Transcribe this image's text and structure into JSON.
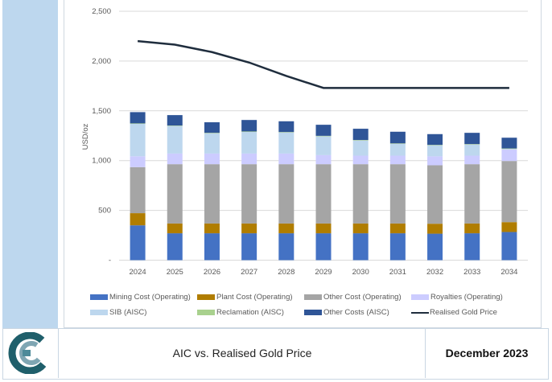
{
  "footer": {
    "title": "AIC vs. Realised Gold Price",
    "date": "December 2023"
  },
  "chart_data": {
    "type": "bar",
    "stacked": true,
    "title": "",
    "xlabel": "",
    "ylabel": "USD/oz",
    "ylim": [
      0,
      2500
    ],
    "yticks": [
      "-",
      "500",
      "1,000",
      "1,500",
      "2,000",
      "2,500"
    ],
    "grid": true,
    "legend_position": "bottom",
    "categories": [
      "2024",
      "2025",
      "2026",
      "2027",
      "2028",
      "2029",
      "2030",
      "2031",
      "2032",
      "2033",
      "2034"
    ],
    "series": [
      {
        "name": "Mining Cost (Operating)",
        "color": "#4472c4",
        "values": [
          350,
          270,
          270,
          270,
          270,
          270,
          270,
          270,
          266,
          270,
          283
        ]
      },
      {
        "name": "Plant Cost (Operating)",
        "color": "#b07d00",
        "values": [
          122,
          98,
          98,
          98,
          98,
          98,
          98,
          98,
          100,
          98,
          99
        ]
      },
      {
        "name": "Other Cost (Operating)",
        "color": "#a5a5a5",
        "values": [
          462,
          596,
          596,
          596,
          596,
          596,
          596,
          596,
          587,
          596,
          614
        ]
      },
      {
        "name": "Royalties (Operating)",
        "color": "#ccccff",
        "values": [
          110,
          107,
          107,
          107,
          107,
          91,
          86,
          86,
          90,
          86,
          116
        ]
      },
      {
        "name": "SIB (AISC)",
        "color": "#bdd7ee",
        "values": [
          325,
          276,
          203,
          217,
          211,
          189,
          152,
          118,
          110,
          111,
          5
        ]
      },
      {
        "name": "Reclamation (AISC)",
        "color": "#a9d18e",
        "values": [
          5,
          5,
          5,
          5,
          5,
          5,
          5,
          5,
          5,
          5,
          5
        ]
      },
      {
        "name": "Other Costs (AISC)",
        "color": "#2f5597",
        "values": [
          113,
          105,
          106,
          115,
          108,
          111,
          113,
          117,
          108,
          113,
          108
        ]
      }
    ],
    "line_series": {
      "name": "Realised Gold Price",
      "color": "#1f2d3d",
      "values": [
        2200,
        2165,
        2090,
        1985,
        1850,
        1730,
        1730,
        1730,
        1730,
        1730,
        1730
      ]
    }
  }
}
